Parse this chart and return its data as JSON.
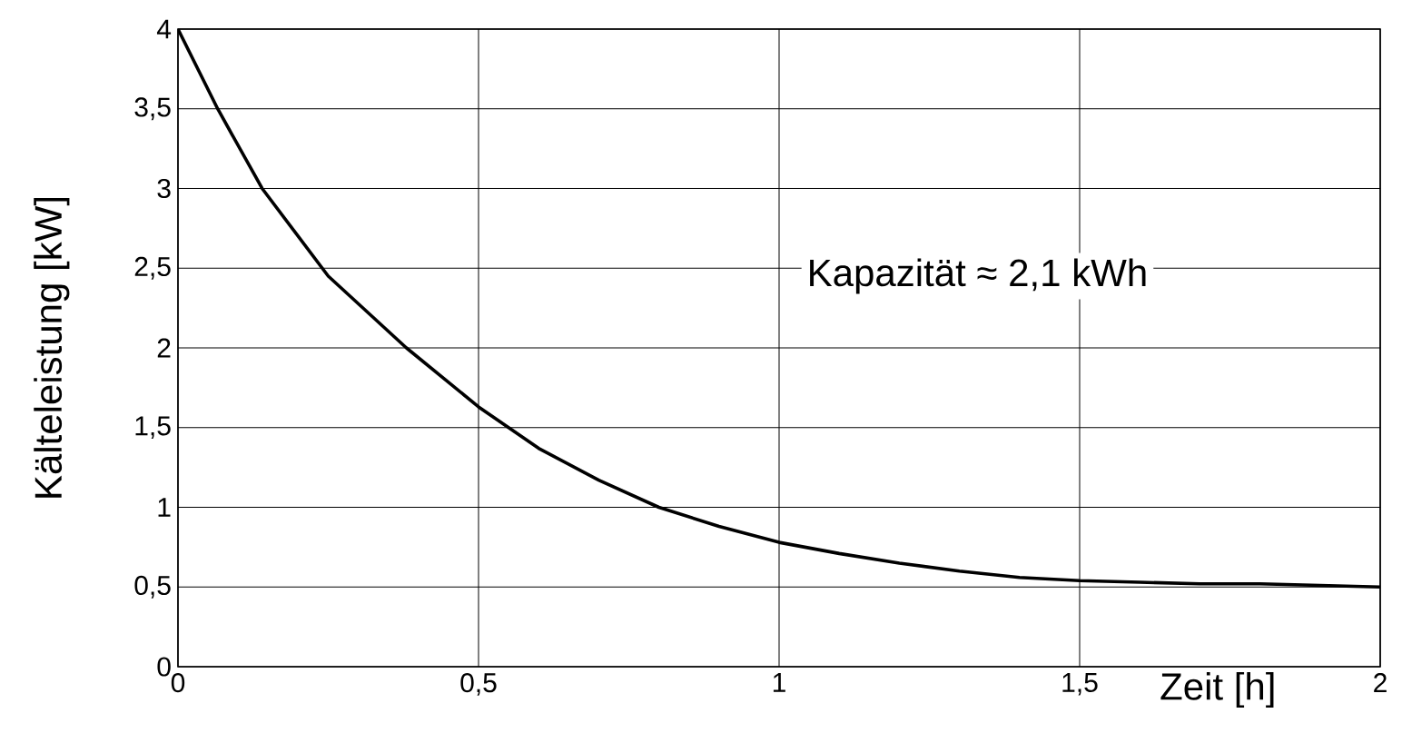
{
  "chart_data": {
    "type": "line",
    "xlabel": "Zeit  [h]",
    "ylabel": "Kälteleistung  [kW]",
    "annotations": [
      "Kapazität ≈ 2,1 kWh"
    ],
    "x": [
      0,
      0.066,
      0.14,
      0.25,
      0.38,
      0.5,
      0.6,
      0.7,
      0.8,
      0.9,
      1.0,
      1.1,
      1.2,
      1.3,
      1.4,
      1.5,
      1.6,
      1.7,
      1.8,
      1.9,
      2.0
    ],
    "series": [
      {
        "color": "#000000",
        "values": [
          4,
          3.5,
          3.0,
          2.45,
          2.0,
          1.63,
          1.37,
          1.17,
          1.0,
          0.88,
          0.78,
          0.71,
          0.65,
          0.6,
          0.56,
          0.54,
          0.53,
          0.52,
          0.52,
          0.51,
          0.5
        ]
      }
    ],
    "xlim": [
      0,
      2
    ],
    "ylim": [
      0,
      4
    ],
    "xticks": [
      0,
      {
        "value": 0.5,
        "label": "0,5"
      },
      1,
      {
        "value": 1.5,
        "label": "1,5"
      },
      2
    ],
    "yticks": [
      0,
      {
        "value": 0.5,
        "label": "0,5"
      },
      1,
      {
        "value": 1.5,
        "label": "1,5"
      },
      2,
      {
        "value": 2.5,
        "label": "2,5"
      },
      3,
      {
        "value": 3.5,
        "label": "3,5"
      },
      4
    ],
    "grid": true,
    "marker": "none",
    "line_style": "solid"
  }
}
